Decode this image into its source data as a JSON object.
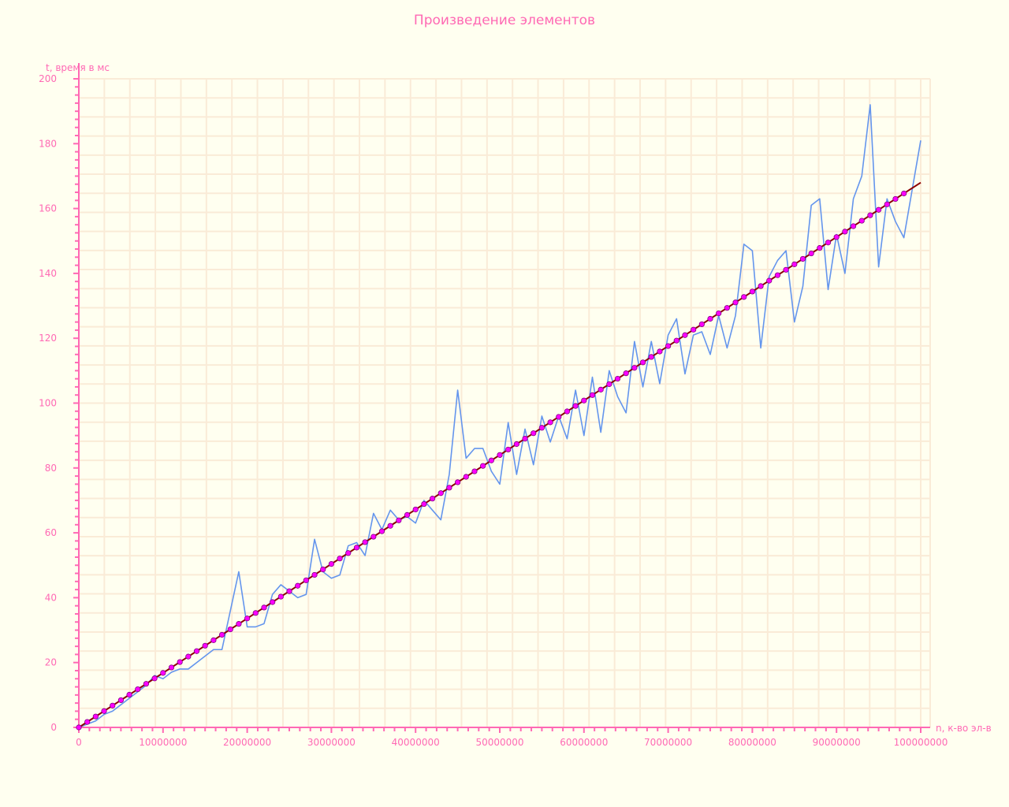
{
  "chart_data": {
    "type": "line",
    "title": "Произведение элементов",
    "xlabel": "n, к-во эл-в",
    "ylabel": "t, время в мс",
    "xlim": [
      0,
      100000000
    ],
    "ylim": [
      0,
      200
    ],
    "x_ticks": [
      "0",
      "10000000",
      "20000000",
      "30000000",
      "40000000",
      "50000000",
      "60000000",
      "70000000",
      "80000000",
      "90000000",
      "100000000"
    ],
    "y_ticks": [
      "0",
      "20",
      "40",
      "60",
      "80",
      "100",
      "120",
      "140",
      "160",
      "180",
      "200"
    ],
    "grid": true,
    "colors": {
      "background": "#FFFFF0",
      "grid": "#FAEBD7",
      "axis": "#FF69B4",
      "text": "#FF69B4",
      "measured": "#6495ED",
      "fit_line": "#8B0000",
      "fit_marker": "#FF00FF"
    },
    "series": [
      {
        "style": "line",
        "x": [
          0,
          1000000,
          2000000,
          3000000,
          4000000,
          5000000,
          6000000,
          7000000,
          8000000,
          9000000,
          10000000,
          11000000,
          12000000,
          13000000,
          14000000,
          15000000,
          16000000,
          17000000,
          18000000,
          19000000,
          20000000,
          21000000,
          22000000,
          23000000,
          24000000,
          25000000,
          26000000,
          27000000,
          28000000,
          29000000,
          30000000,
          31000000,
          32000000,
          33000000,
          34000000,
          35000000,
          36000000,
          37000000,
          38000000,
          39000000,
          40000000,
          41000000,
          42000000,
          43000000,
          44000000,
          45000000,
          46000000,
          47000000,
          48000000,
          49000000,
          50000000,
          51000000,
          52000000,
          53000000,
          54000000,
          55000000,
          56000000,
          57000000,
          58000000,
          59000000,
          60000000,
          61000000,
          62000000,
          63000000,
          64000000,
          65000000,
          66000000,
          67000000,
          68000000,
          69000000,
          70000000,
          71000000,
          72000000,
          73000000,
          74000000,
          75000000,
          76000000,
          77000000,
          78000000,
          79000000,
          80000000,
          81000000,
          82000000,
          83000000,
          84000000,
          85000000,
          86000000,
          87000000,
          88000000,
          89000000,
          90000000,
          91000000,
          92000000,
          93000000,
          94000000,
          95000000,
          96000000,
          97000000,
          98000000,
          99000000,
          100000000
        ],
        "y": [
          0,
          1,
          2,
          4,
          5,
          7,
          9,
          11,
          13,
          16,
          15,
          17,
          18,
          18,
          20,
          22,
          24,
          24,
          36,
          48,
          31,
          31,
          32,
          41,
          44,
          42,
          40,
          41,
          58,
          48,
          46,
          47,
          56,
          57,
          53,
          66,
          61,
          67,
          64,
          65,
          63,
          70,
          67,
          64,
          78,
          104,
          83,
          86,
          86,
          79,
          75,
          94,
          78,
          92,
          81,
          96,
          88,
          96,
          89,
          104,
          90,
          108,
          91,
          110,
          102,
          97,
          119,
          105,
          119,
          106,
          121,
          126,
          109,
          121,
          122,
          115,
          127,
          117,
          127,
          149,
          147,
          117,
          139,
          144,
          147,
          125,
          136,
          161,
          163,
          135,
          152,
          140,
          163,
          170,
          192,
          142,
          163,
          156,
          151,
          166,
          181
        ]
      },
      {
        "style": "line-with-markers",
        "x": [
          0,
          100000000
        ],
        "y": [
          0,
          168
        ]
      }
    ]
  }
}
